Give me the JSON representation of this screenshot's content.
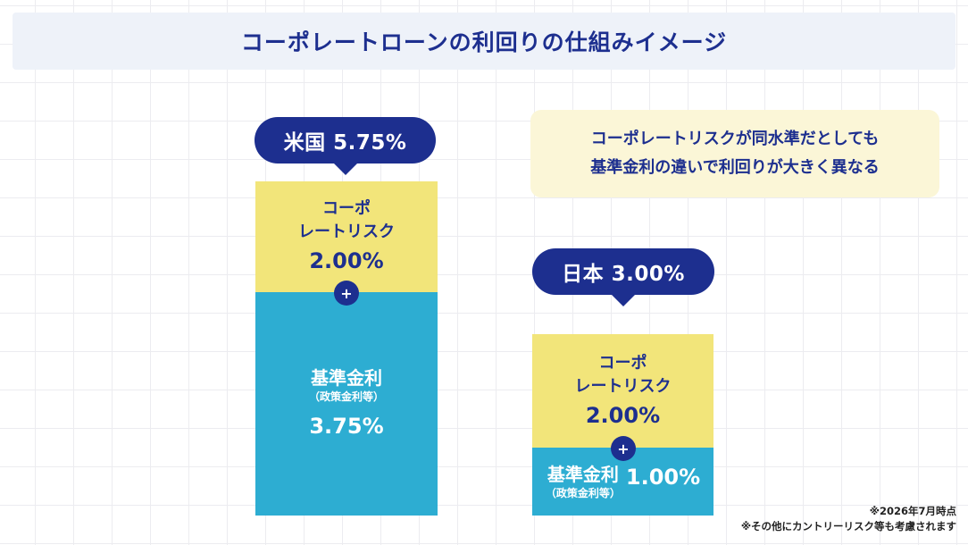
{
  "title": "コーポレートローンの利回りの仕組みイメージ",
  "callout": {
    "line1": "コーポレートリスクが同水準だとしても",
    "line2": "基準金利の違いで利回りが大きく異なる"
  },
  "colors": {
    "navy": "#1d2f8f",
    "risk_yellow": "#f2e57a",
    "base_blue": "#2dadd2",
    "callout_bg": "#fbf6d7"
  },
  "chart_data": {
    "type": "bar",
    "stacked": true,
    "categories": [
      "米国",
      "日本"
    ],
    "series": [
      {
        "name": "基準金利（政策金利等）",
        "values": [
          3.75,
          1.0
        ]
      },
      {
        "name": "コーポレートリスク",
        "values": [
          2.0,
          2.0
        ]
      }
    ],
    "totals": [
      5.75,
      3.0
    ]
  },
  "us": {
    "bubble": "米国 5.75%",
    "risk_line1": "コーポ",
    "risk_line2": "レートリスク",
    "risk_value": "2.00%",
    "plus": "+",
    "base_label": "基準金利",
    "base_sub": "（政策金利等）",
    "base_value": "3.75%"
  },
  "jp": {
    "bubble": "日本 3.00%",
    "risk_line1": "コーポ",
    "risk_line2": "レートリスク",
    "risk_value": "2.00%",
    "plus": "+",
    "base_label": "基準金利",
    "base_sub": "（政策金利等）",
    "base_value": "1.00%"
  },
  "notes": {
    "line1": "※2026年7月時点",
    "line2": "※その他にカントリーリスク等も考慮されます"
  }
}
